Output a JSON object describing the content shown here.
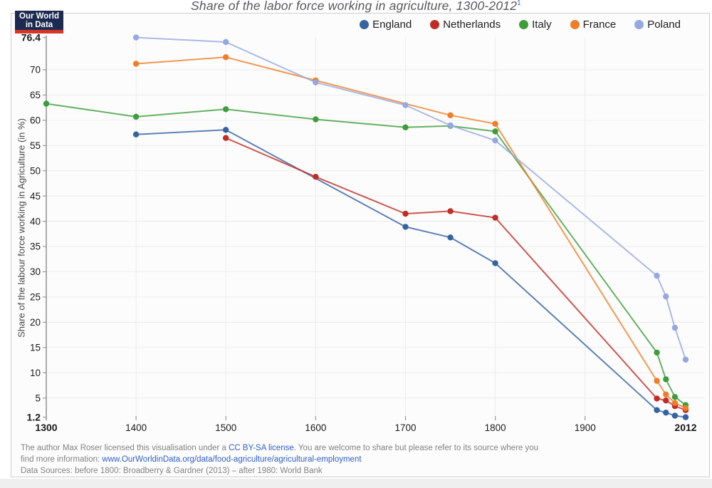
{
  "page": {
    "title": "Share of the labor force working in agriculture, 1300-2012",
    "title_footnote": "1",
    "logo": {
      "line1": "Our World",
      "line2": "in Data"
    },
    "colors": {
      "link_blue": "#2e5fc7",
      "border_gray": "#cdcdcd",
      "chart_background": "#fcfcfc",
      "logo_background": "#1c2a4f",
      "logo_stripe": "#d8352a",
      "gridline": "#ececec",
      "axis_line": "#999999"
    }
  },
  "chart_data": {
    "type": "line",
    "title": "Share of the labor force working in agriculture, 1300-2012",
    "xlabel": "",
    "ylabel": "Share of the labour force working in Agriculture (in %)",
    "x_domain": [
      1300,
      2012
    ],
    "ylim": [
      1.2,
      76.4
    ],
    "x_ticks": [
      1300,
      1400,
      1500,
      1600,
      1700,
      1800,
      1900,
      2012
    ],
    "y_ticks": [
      76.4,
      70,
      65,
      60,
      55,
      50,
      45,
      40,
      35,
      30,
      25,
      20,
      15,
      10,
      5,
      1.2
    ],
    "grid": true,
    "legend_position": "top-right",
    "series": [
      {
        "name": "England",
        "color": "#3563a2",
        "points": [
          [
            1400,
            57.2
          ],
          [
            1500,
            58.1
          ],
          [
            1700,
            38.9
          ],
          [
            1750,
            36.8
          ],
          [
            1800,
            31.7
          ],
          [
            1980,
            2.6
          ],
          [
            1990,
            2.1
          ],
          [
            2000,
            1.5
          ],
          [
            2012,
            1.2
          ]
        ]
      },
      {
        "name": "Netherlands",
        "color": "#c22c26",
        "points": [
          [
            1500,
            56.5
          ],
          [
            1600,
            48.8
          ],
          [
            1700,
            41.5
          ],
          [
            1750,
            42
          ],
          [
            1800,
            40.7
          ],
          [
            1980,
            4.9
          ],
          [
            1990,
            4.5
          ],
          [
            2000,
            3.4
          ],
          [
            2012,
            2.6
          ]
        ]
      },
      {
        "name": "Italy",
        "color": "#3e9d3b",
        "points": [
          [
            1300,
            63.3
          ],
          [
            1400,
            60.7
          ],
          [
            1500,
            62.2
          ],
          [
            1600,
            60.2
          ],
          [
            1700,
            58.6
          ],
          [
            1750,
            58.9
          ],
          [
            1800,
            57.8
          ],
          [
            1980,
            14
          ],
          [
            1990,
            8.7
          ],
          [
            2000,
            5.2
          ],
          [
            2012,
            3.6
          ]
        ]
      },
      {
        "name": "France",
        "color": "#ef7e28",
        "points": [
          [
            1400,
            71.2
          ],
          [
            1500,
            72.5
          ],
          [
            1600,
            67.9
          ],
          [
            1750,
            61
          ],
          [
            1800,
            59.3
          ],
          [
            1980,
            8.4
          ],
          [
            1990,
            5.7
          ],
          [
            2000,
            4
          ],
          [
            2012,
            3
          ]
        ]
      },
      {
        "name": "Poland",
        "color": "#96a8df",
        "points": [
          [
            1400,
            76.4
          ],
          [
            1500,
            75.5
          ],
          [
            1600,
            67.5
          ],
          [
            1700,
            63
          ],
          [
            1750,
            59
          ],
          [
            1800,
            56
          ],
          [
            1980,
            29.2
          ],
          [
            1990,
            25.1
          ],
          [
            2000,
            18.9
          ],
          [
            2012,
            12.6
          ]
        ]
      }
    ]
  },
  "footer": {
    "line1_prefix": "The author Max Roser licensed this visualisation under a ",
    "line1_link": "CC BY-SA license",
    "line1_suffix": ". You are welcome to share but please refer to its source where you",
    "line2_prefix": "find more information:  ",
    "line2_link": "www.OurWorldinData.org/data/food-agriculture/agricultural-employment",
    "line3": "Data Sources: before 1800: Broadberry & Gardner (2013) – after 1980: World Bank"
  }
}
